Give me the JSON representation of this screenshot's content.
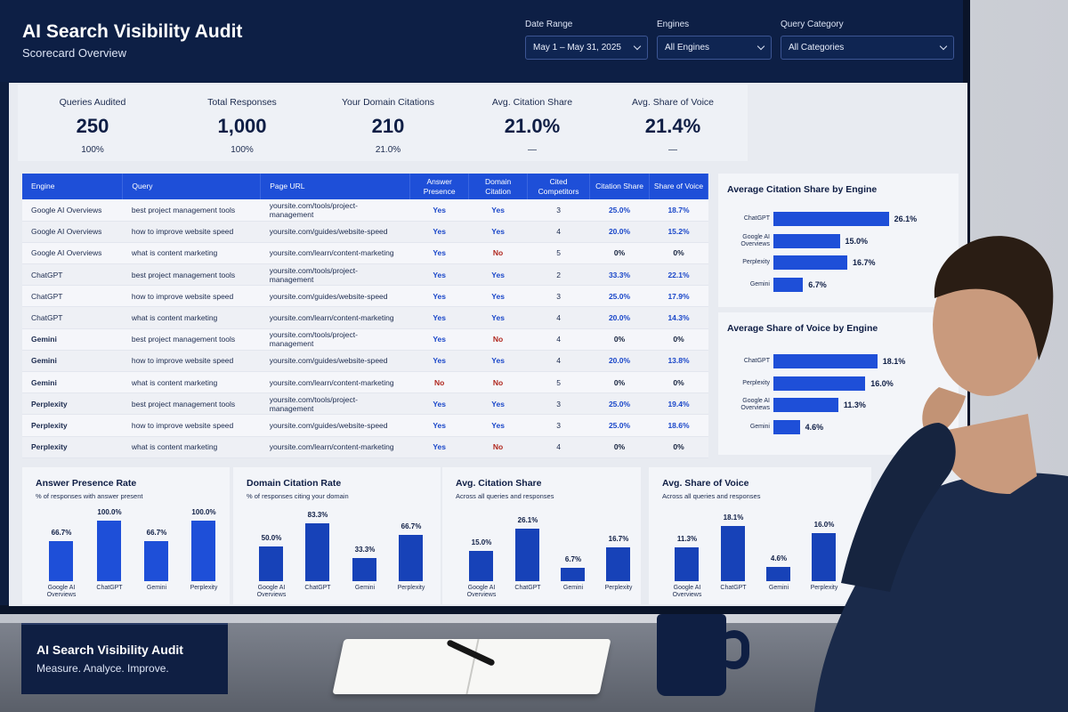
{
  "header": {
    "title": "AI Search Visibility Audit",
    "subtitle": "Scorecard Overview",
    "filters": [
      {
        "label": "Date Range",
        "value": "May 1 – May 31, 2025"
      },
      {
        "label": "Engines",
        "value": "All Engines"
      },
      {
        "label": "Query Category",
        "value": "All Categories"
      }
    ]
  },
  "kpis": [
    {
      "label": "Queries Audited",
      "value": "250",
      "sub": "100%"
    },
    {
      "label": "Total Responses",
      "value": "1,000",
      "sub": "100%"
    },
    {
      "label": "Your Domain Citations",
      "value": "210",
      "sub": "21.0%"
    },
    {
      "label": "Avg. Citation Share",
      "value": "21.0%",
      "sub": "—"
    },
    {
      "label": "Avg. Share of Voice",
      "value": "21.4%",
      "sub": "—"
    }
  ],
  "table": {
    "headers": [
      "Engine",
      "Query",
      "Page URL",
      "Answer Presence",
      "Domain Citation",
      "Cited Competitors",
      "Citation Share",
      "Share of Voice"
    ],
    "rows": [
      [
        "Google AI Overviews",
        "best project management tools",
        "yoursite.com/tools/project-management",
        "Yes",
        "Yes",
        "3",
        "25.0%",
        "18.7%"
      ],
      [
        "Google AI Overviews",
        "how to improve website speed",
        "yoursite.com/guides/website-speed",
        "Yes",
        "Yes",
        "4",
        "20.0%",
        "15.2%"
      ],
      [
        "Google AI Overviews",
        "what is content marketing",
        "yoursite.com/learn/content-marketing",
        "Yes",
        "No",
        "5",
        "0%",
        "0%"
      ],
      [
        "ChatGPT",
        "best project management tools",
        "yoursite.com/tools/project-management",
        "Yes",
        "Yes",
        "2",
        "33.3%",
        "22.1%"
      ],
      [
        "ChatGPT",
        "how to improve website speed",
        "yoursite.com/guides/website-speed",
        "Yes",
        "Yes",
        "3",
        "25.0%",
        "17.9%"
      ],
      [
        "ChatGPT",
        "what is content marketing",
        "yoursite.com/learn/content-marketing",
        "Yes",
        "Yes",
        "4",
        "20.0%",
        "14.3%"
      ],
      [
        "Gemini",
        "best project management tools",
        "yoursite.com/tools/project-management",
        "Yes",
        "No",
        "4",
        "0%",
        "0%"
      ],
      [
        "Gemini",
        "how to improve website speed",
        "yoursite.com/guides/website-speed",
        "Yes",
        "Yes",
        "4",
        "20.0%",
        "13.8%"
      ],
      [
        "Gemini",
        "what is content marketing",
        "yoursite.com/learn/content-marketing",
        "No",
        "No",
        "5",
        "0%",
        "0%"
      ],
      [
        "Perplexity",
        "best project management tools",
        "yoursite.com/tools/project-management",
        "Yes",
        "Yes",
        "3",
        "25.0%",
        "19.4%"
      ],
      [
        "Perplexity",
        "how to improve website speed",
        "yoursite.com/guides/website-speed",
        "Yes",
        "Yes",
        "3",
        "25.0%",
        "18.6%"
      ],
      [
        "Perplexity",
        "what is content marketing",
        "yoursite.com/learn/content-marketing",
        "Yes",
        "No",
        "4",
        "0%",
        "0%"
      ]
    ]
  },
  "side_panels": {
    "citation_title": "Average Citation Share by Engine",
    "sov_title": "Average Share of Voice by Engine"
  },
  "bottom_panels": [
    {
      "title": "Answer Presence Rate",
      "subtitle": "% of responses with answer present"
    },
    {
      "title": "Domain Citation Rate",
      "subtitle": "% of responses citing your domain"
    },
    {
      "title": "Avg. Citation Share",
      "subtitle": "Across all queries and responses"
    },
    {
      "title": "Avg. Share of Voice",
      "subtitle": "Across all queries and responses"
    }
  ],
  "chart_data": [
    {
      "type": "bar",
      "orientation": "horizontal",
      "title": "Average Citation Share by Engine",
      "categories": [
        "ChatGPT",
        "Google AI Overviews",
        "Perplexity",
        "Gemini"
      ],
      "values": [
        26.1,
        15.0,
        16.7,
        6.7
      ],
      "labels": [
        "26.1%",
        "15.0%",
        "16.7%",
        "6.7%"
      ],
      "xlim": [
        0,
        30
      ]
    },
    {
      "type": "bar",
      "orientation": "horizontal",
      "title": "Average Share of Voice by Engine",
      "categories": [
        "ChatGPT",
        "Perplexity",
        "Google AI Overviews",
        "Gemini"
      ],
      "values": [
        18.1,
        16.0,
        11.3,
        4.6
      ],
      "labels": [
        "18.1%",
        "16.0%",
        "11.3%",
        "4.6%"
      ],
      "xlim": [
        0,
        20
      ]
    },
    {
      "type": "bar",
      "title": "Answer Presence Rate",
      "categories": [
        "Google AI Overviews",
        "ChatGPT",
        "Gemini",
        "Perplexity"
      ],
      "values": [
        66.7,
        100.0,
        66.7,
        100.0
      ],
      "labels": [
        "66.7%",
        "100.0%",
        "66.7%",
        "100.0%"
      ],
      "ylim": [
        0,
        100
      ]
    },
    {
      "type": "bar",
      "title": "Domain Citation Rate",
      "categories": [
        "Google AI Overviews",
        "ChatGPT",
        "Gemini",
        "Perplexity"
      ],
      "values": [
        50.0,
        83.3,
        33.3,
        66.7
      ],
      "labels": [
        "50.0%",
        "83.3%",
        "33.3%",
        "66.7%"
      ],
      "ylim": [
        0,
        100
      ]
    },
    {
      "type": "bar",
      "title": "Avg. Citation Share",
      "categories": [
        "Google AI Overviews",
        "ChatGPT",
        "Gemini",
        "Perplexity"
      ],
      "values": [
        15.0,
        26.1,
        6.7,
        16.7
      ],
      "labels": [
        "15.0%",
        "26.1%",
        "6.7%",
        "16.7%"
      ],
      "ylim": [
        0,
        30
      ]
    },
    {
      "type": "bar",
      "title": "Avg. Share of Voice",
      "categories": [
        "Google AI Overviews",
        "ChatGPT",
        "Gemini",
        "Perplexity"
      ],
      "values": [
        11.3,
        18.1,
        4.6,
        16.0
      ],
      "labels": [
        "11.3%",
        "18.1%",
        "4.6%",
        "16.0%"
      ],
      "ylim": [
        0,
        20
      ]
    }
  ],
  "desk": {
    "nameplate_title": "AI Search Visibility Audit",
    "nameplate_sub": "Measure. Analyce. Improve."
  },
  "colors": {
    "navy": "#0d1f45",
    "accent_blue": "#1e4fd8",
    "dark_blue": "#1742b8",
    "no_red": "#b0281f"
  }
}
